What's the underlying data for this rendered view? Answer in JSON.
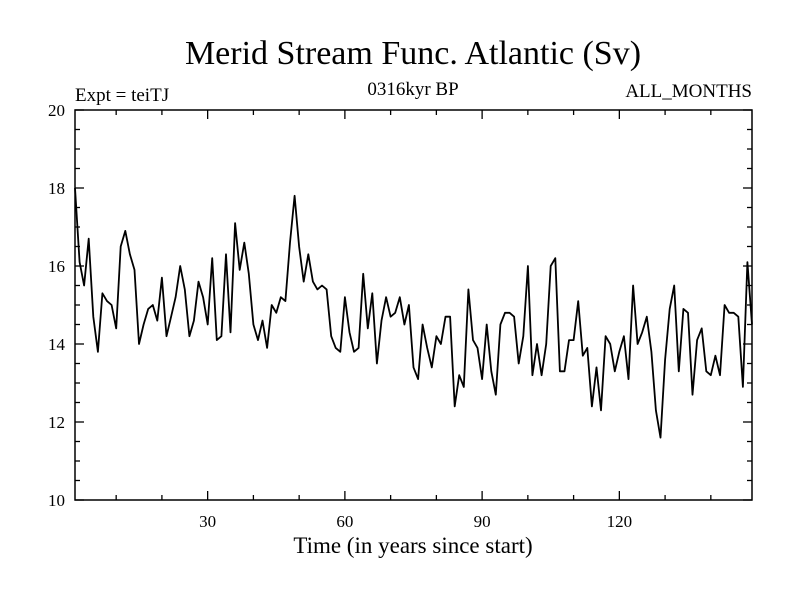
{
  "chart_data": {
    "type": "line",
    "title": "Merid Stream Func. Atlantic (Sv)",
    "subtitle_left": "Expt = teiTJ",
    "subtitle_center": "0316kyr BP",
    "subtitle_right": "ALL_MONTHS",
    "xlabel": "Time (in years since start)",
    "ylabel": "",
    "xlim": [
      1,
      149
    ],
    "ylim": [
      10,
      20
    ],
    "xticks": [
      30,
      60,
      90,
      120
    ],
    "yticks": [
      10,
      12,
      14,
      16,
      18,
      20
    ],
    "grid": false,
    "series": [
      {
        "name": "Merid Stream Func. Atlantic",
        "color": "#000000",
        "x": [
          1,
          2,
          3,
          4,
          5,
          6,
          7,
          8,
          9,
          10,
          11,
          12,
          13,
          14,
          15,
          16,
          17,
          18,
          19,
          20,
          21,
          22,
          23,
          24,
          25,
          26,
          27,
          28,
          29,
          30,
          31,
          32,
          33,
          34,
          35,
          36,
          37,
          38,
          39,
          40,
          41,
          42,
          43,
          44,
          45,
          46,
          47,
          48,
          49,
          50,
          51,
          52,
          53,
          54,
          55,
          56,
          57,
          58,
          59,
          60,
          61,
          62,
          63,
          64,
          65,
          66,
          67,
          68,
          69,
          70,
          71,
          72,
          73,
          74,
          75,
          76,
          77,
          78,
          79,
          80,
          81,
          82,
          83,
          84,
          85,
          86,
          87,
          88,
          89,
          90,
          91,
          92,
          93,
          94,
          95,
          96,
          97,
          98,
          99,
          100,
          101,
          102,
          103,
          104,
          105,
          106,
          107,
          108,
          109,
          110,
          111,
          112,
          113,
          114,
          115,
          116,
          117,
          118,
          119,
          120,
          121,
          122,
          123,
          124,
          125,
          126,
          127,
          128,
          129,
          130,
          131,
          132,
          133,
          134,
          135,
          136,
          137,
          138,
          139,
          140,
          141,
          142,
          143,
          144,
          145,
          146,
          147,
          148,
          149
        ],
        "values": [
          18.0,
          16.1,
          15.5,
          16.7,
          14.7,
          13.8,
          15.3,
          15.1,
          15.0,
          14.4,
          16.5,
          16.9,
          16.3,
          15.9,
          14.0,
          14.5,
          14.9,
          15.0,
          14.6,
          15.7,
          14.2,
          14.7,
          15.2,
          16.0,
          15.4,
          14.2,
          14.6,
          15.6,
          15.2,
          14.5,
          16.2,
          14.1,
          14.2,
          16.3,
          14.3,
          17.1,
          15.9,
          16.6,
          15.8,
          14.5,
          14.1,
          14.6,
          13.9,
          15.0,
          14.8,
          15.2,
          15.1,
          16.6,
          17.8,
          16.5,
          15.6,
          16.3,
          15.6,
          15.4,
          15.5,
          15.4,
          14.2,
          13.9,
          13.8,
          15.2,
          14.3,
          13.8,
          13.9,
          15.8,
          14.4,
          15.3,
          13.5,
          14.6,
          15.2,
          14.7,
          14.8,
          15.2,
          14.5,
          15.0,
          13.4,
          13.1,
          14.5,
          13.9,
          13.4,
          14.2,
          14.0,
          14.7,
          14.7,
          12.4,
          13.2,
          12.9,
          15.4,
          14.1,
          13.9,
          13.1,
          14.5,
          13.3,
          12.7,
          14.5,
          14.8,
          14.8,
          14.7,
          13.5,
          14.2,
          16.0,
          13.2,
          14.0,
          13.2,
          14.0,
          16.0,
          16.2,
          13.3,
          13.3,
          14.1,
          14.1,
          15.1,
          13.7,
          13.9,
          12.4,
          13.4,
          12.3,
          14.2,
          14.0,
          13.3,
          13.8,
          14.2,
          13.1,
          15.5,
          14.0,
          14.3,
          14.7,
          13.8,
          12.3,
          11.6,
          13.6,
          14.9,
          15.5,
          13.3,
          14.9,
          14.8,
          12.7,
          14.1,
          14.4,
          13.3,
          13.2,
          13.7,
          13.2,
          15.0,
          14.8,
          14.8,
          14.7,
          12.9,
          16.1,
          14.5
        ]
      }
    ]
  }
}
